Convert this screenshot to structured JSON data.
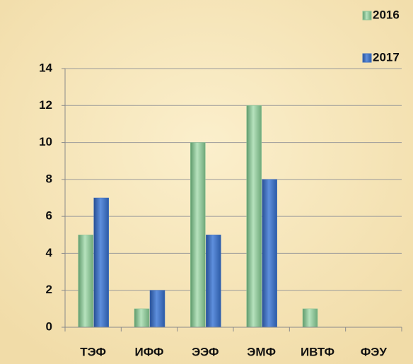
{
  "chart_data": {
    "type": "bar",
    "categories": [
      "ТЭФ",
      "ИФФ",
      "ЭЭФ",
      "ЭМФ",
      "ИВТФ",
      "ФЭУ"
    ],
    "series": [
      {
        "name": "2016",
        "color": "#8cc597",
        "values": [
          5,
          1,
          10,
          12,
          1,
          0
        ]
      },
      {
        "name": "2017",
        "color": "#3d6fc2",
        "values": [
          7,
          2,
          5,
          8,
          0,
          0
        ]
      }
    ],
    "ylim": [
      0,
      14
    ],
    "yticks": [
      0,
      2,
      4,
      6,
      8,
      10,
      12,
      14
    ],
    "grid": true,
    "legend": "top-right"
  }
}
